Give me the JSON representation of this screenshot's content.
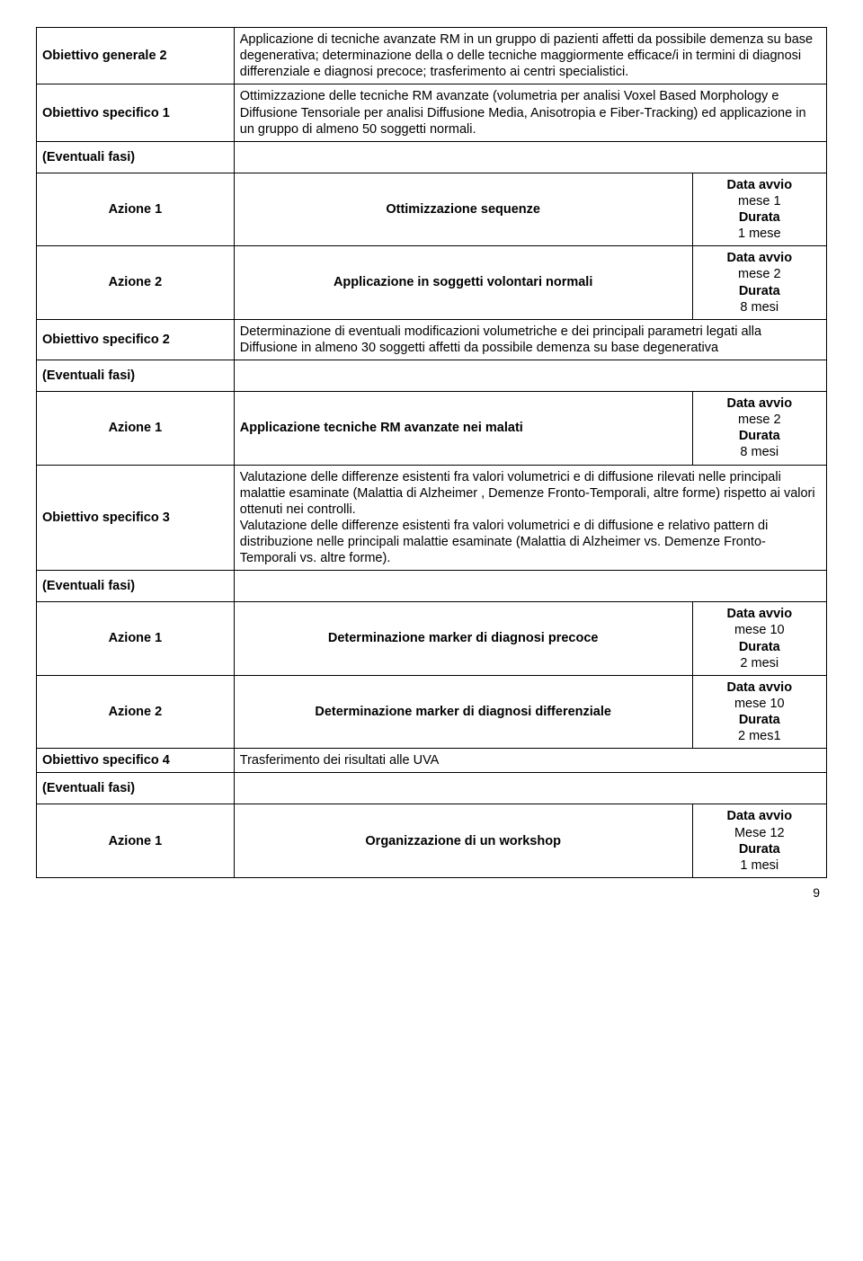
{
  "objGen2": {
    "label": "Obiettivo generale  2",
    "text": "Applicazione di tecniche avanzate RM in un gruppo di pazienti affetti da possibile demenza su base degenerativa; determinazione della o delle tecniche maggiormente efficace/i in termini di diagnosi differenziale e diagnosi precoce; trasferimento ai centri specialistici."
  },
  "spec1": {
    "label": "Obiettivo specifico 1",
    "text": "Ottimizzazione delle tecniche RM avanzate (volumetria per analisi Voxel Based Morphology e Diffusione Tensoriale per analisi Diffusione Media, Anisotropia e Fiber-Tracking) ed applicazione in un gruppo di almeno 50 soggetti normali."
  },
  "eventuali": "(Eventuali fasi)",
  "dataAvvio": "Data avvio",
  "durata": "Durata",
  "az": {
    "a1": "Azione 1",
    "a2": "Azione 2"
  },
  "s1a1": {
    "desc": "Ottimizzazione sequenze",
    "start": "mese 1",
    "dur": "1 mese"
  },
  "s1a2": {
    "desc": "Applicazione in soggetti volontari normali",
    "start": "mese 2",
    "dur": "8 mesi"
  },
  "spec2": {
    "label": "Obiettivo specifico 2",
    "text": "Determinazione di eventuali modificazioni volumetriche e dei principali parametri legati alla Diffusione in almeno 30 soggetti affetti da possibile demenza su base degenerativa"
  },
  "s2a1": {
    "desc": "Applicazione tecniche RM avanzate nei malati",
    "start": "mese 2",
    "dur": "8 mesi"
  },
  "spec3": {
    "label": "Obiettivo specifico 3",
    "text": "Valutazione delle differenze esistenti fra valori volumetrici e di diffusione rilevati nelle principali malattie esaminate (Malattia di Alzheimer , Demenze Fronto-Temporali, altre forme) rispetto ai valori ottenuti nei controlli.\nValutazione delle differenze esistenti fra valori volumetrici e di diffusione e relativo pattern di distribuzione nelle principali malattie esaminate (Malattia di Alzheimer vs. Demenze Fronto-Temporali vs. altre forme)."
  },
  "s3a1": {
    "desc": "Determinazione marker di diagnosi precoce",
    "start": "mese 10",
    "dur": "2 mesi"
  },
  "s3a2": {
    "desc": "Determinazione marker di diagnosi differenziale",
    "start": "mese 10",
    "dur": "2 mes1"
  },
  "spec4": {
    "label": "Obiettivo specifico 4",
    "text": "Trasferimento dei risultati alle UVA"
  },
  "s4a1": {
    "desc": "Organizzazione di un workshop",
    "start": "Mese 12",
    "dur": "1 mesi"
  },
  "pageNum": "9"
}
